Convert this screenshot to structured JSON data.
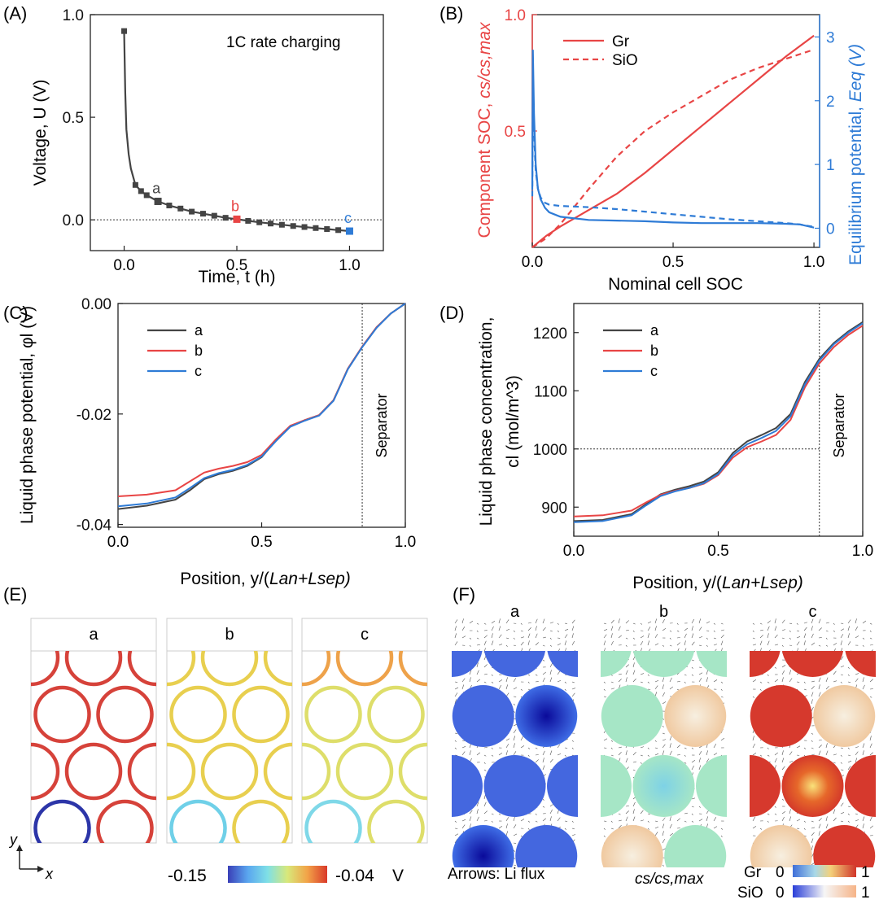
{
  "panel_labels": [
    "(A)",
    "(B)",
    "(C)",
    "(D)",
    "(E)",
    "(F)"
  ],
  "colors": {
    "dark": "#444444",
    "red": "#e84545",
    "blue": "#2e7bd6",
    "axis": "#222222",
    "colorbar_stops": [
      "#3a3fb8",
      "#5aa6ef",
      "#7fe0e6",
      "#d8e87a",
      "#f2a348",
      "#d93a2a"
    ],
    "gr_bar_stops": [
      "#3f6fd9",
      "#a8d8e8",
      "#f3d07a",
      "#d0352a"
    ],
    "sio_bar_stops": [
      "#2a3fd8",
      "#f6f6f6",
      "#f6b488"
    ]
  },
  "chart_data": [
    {
      "id": "A",
      "type": "line",
      "annotation": "1C rate charging",
      "xlabel": "Time, t (h)",
      "ylabel": "Voltage, U (V)",
      "xlim": [
        -0.15,
        1.15
      ],
      "ylim": [
        -0.15,
        1.0
      ],
      "xticks": [
        0.0,
        0.5,
        1.0
      ],
      "xtick_labels": [
        "0.0",
        "0.5",
        "1.0"
      ],
      "yticks": [
        0.0,
        0.5,
        1.0
      ],
      "ytick_labels": [
        "0.0",
        "0.5",
        "1.0"
      ],
      "reference_line_y": 0.0,
      "series": [
        {
          "name": "voltage",
          "x": [
            0.0,
            0.005,
            0.01,
            0.02,
            0.03,
            0.05,
            0.075,
            0.1,
            0.15,
            0.2,
            0.25,
            0.3,
            0.35,
            0.4,
            0.45,
            0.5,
            0.55,
            0.6,
            0.65,
            0.7,
            0.75,
            0.8,
            0.85,
            0.9,
            0.95,
            1.0
          ],
          "y": [
            0.92,
            0.62,
            0.44,
            0.32,
            0.25,
            0.17,
            0.14,
            0.12,
            0.09,
            0.07,
            0.055,
            0.04,
            0.03,
            0.02,
            0.01,
            0.003,
            -0.005,
            -0.012,
            -0.018,
            -0.024,
            -0.03,
            -0.035,
            -0.04,
            -0.045,
            -0.05,
            -0.055
          ]
        }
      ],
      "markers": [
        {
          "label": "a",
          "x": 0.15,
          "y": 0.09,
          "color": "dark"
        },
        {
          "label": "b",
          "x": 0.5,
          "y": 0.003,
          "color": "red"
        },
        {
          "label": "c",
          "x": 1.0,
          "y": -0.055,
          "color": "blue"
        }
      ]
    },
    {
      "id": "B",
      "type": "line",
      "xlabel": "Nominal cell SOC",
      "ylabel_left_plain": "Component SOC, ",
      "ylabel_left_math": "cs/cs,max",
      "ylabel_right_plain": "Equilibrium potential, ",
      "ylabel_right_math": "Eeq (V)",
      "xlim": [
        0.0,
        1.02
      ],
      "ylim_left": [
        0.0,
        1.0
      ],
      "ylim_right": [
        -0.3,
        3.35
      ],
      "xticks": [
        0.0,
        0.5,
        1.0
      ],
      "xtick_labels": [
        "0.0",
        "0.5",
        "1.0"
      ],
      "yticks_left": [
        0.5,
        1.0
      ],
      "ytick_labels_left": [
        "0.5",
        "1.0"
      ],
      "yticks_right": [
        0,
        1,
        2,
        3
      ],
      "ytick_labels_right": [
        "0",
        "1",
        "2",
        "3"
      ],
      "legend": [
        "Gr",
        "SiO"
      ],
      "series": [
        {
          "name": "Gr SOC",
          "axis": "left",
          "style": "solid",
          "color": "red",
          "x": [
            0.0,
            0.05,
            0.1,
            0.2,
            0.3,
            0.4,
            0.5,
            0.6,
            0.7,
            0.8,
            0.9,
            1.0
          ],
          "y": [
            0.0,
            0.05,
            0.09,
            0.16,
            0.23,
            0.32,
            0.42,
            0.52,
            0.62,
            0.72,
            0.82,
            0.91
          ]
        },
        {
          "name": "SiO SOC",
          "axis": "left",
          "style": "dashed",
          "color": "red",
          "x": [
            0.0,
            0.05,
            0.1,
            0.2,
            0.3,
            0.4,
            0.5,
            0.6,
            0.7,
            0.8,
            0.9,
            1.0
          ],
          "y": [
            0.0,
            0.04,
            0.1,
            0.25,
            0.39,
            0.5,
            0.58,
            0.65,
            0.72,
            0.77,
            0.81,
            0.85
          ]
        },
        {
          "name": "Gr Eeq",
          "axis": "right",
          "style": "solid",
          "color": "blue",
          "x": [
            0.0,
            0.002,
            0.006,
            0.012,
            0.02,
            0.03,
            0.045,
            0.06,
            0.1,
            0.2,
            0.3,
            0.4,
            0.5,
            0.6,
            0.7,
            0.8,
            0.9,
            0.95,
            1.0
          ],
          "y": [
            0.6,
            2.8,
            1.8,
            1.0,
            0.62,
            0.45,
            0.32,
            0.25,
            0.18,
            0.13,
            0.12,
            0.11,
            0.09,
            0.08,
            0.08,
            0.08,
            0.07,
            0.06,
            0.01
          ]
        },
        {
          "name": "SiO Eeq",
          "axis": "right",
          "style": "dashed",
          "color": "blue",
          "x": [
            0.0,
            0.002,
            0.006,
            0.012,
            0.02,
            0.03,
            0.045,
            0.06,
            0.1,
            0.2,
            0.3,
            0.4,
            0.5,
            0.6,
            0.7,
            0.8,
            0.9,
            0.95,
            1.0
          ],
          "y": [
            0.5,
            2.2,
            1.5,
            0.9,
            0.62,
            0.48,
            0.4,
            0.37,
            0.35,
            0.33,
            0.3,
            0.26,
            0.22,
            0.18,
            0.14,
            0.11,
            0.08,
            0.06,
            0.02
          ]
        }
      ]
    },
    {
      "id": "C",
      "type": "line",
      "xlabel_plain": "Position, y/(",
      "xlabel_math": "Lan+Lsep)",
      "ylabel": "Liquid phase potential, φl (V)",
      "xlim": [
        0.0,
        1.0
      ],
      "ylim": [
        -0.0405,
        0.0
      ],
      "xticks": [
        0.0,
        0.5,
        1.0
      ],
      "xtick_labels": [
        "0.0",
        "0.5",
        "1.0"
      ],
      "yticks": [
        0.0,
        -0.02,
        -0.04
      ],
      "ytick_labels": [
        "0.00",
        "-0.02",
        "-0.04"
      ],
      "separator_x": 0.85,
      "separator_label": "Separator",
      "legend": [
        "a",
        "b",
        "c"
      ],
      "series": [
        {
          "name": "a",
          "color": "dark",
          "x": [
            0.0,
            0.1,
            0.2,
            0.25,
            0.3,
            0.35,
            0.4,
            0.45,
            0.5,
            0.55,
            0.6,
            0.65,
            0.7,
            0.75,
            0.8,
            0.85,
            0.9,
            0.95,
            1.0
          ],
          "y": [
            -0.0372,
            -0.0366,
            -0.0355,
            -0.0338,
            -0.0318,
            -0.0309,
            -0.0303,
            -0.0294,
            -0.0278,
            -0.0248,
            -0.0222,
            -0.0211,
            -0.0202,
            -0.0175,
            -0.0118,
            -0.0078,
            -0.0043,
            -0.0018,
            0.0
          ]
        },
        {
          "name": "b",
          "color": "red",
          "x": [
            0.0,
            0.1,
            0.2,
            0.25,
            0.3,
            0.35,
            0.4,
            0.45,
            0.5,
            0.55,
            0.6,
            0.65,
            0.7,
            0.75,
            0.8,
            0.85,
            0.9,
            0.95,
            1.0
          ],
          "y": [
            -0.0349,
            -0.0346,
            -0.0338,
            -0.0322,
            -0.0306,
            -0.0299,
            -0.0294,
            -0.0287,
            -0.0274,
            -0.0246,
            -0.0221,
            -0.0211,
            -0.0202,
            -0.0175,
            -0.0118,
            -0.0078,
            -0.0043,
            -0.0018,
            0.0
          ]
        },
        {
          "name": "c",
          "color": "blue",
          "x": [
            0.0,
            0.1,
            0.2,
            0.25,
            0.3,
            0.35,
            0.4,
            0.45,
            0.5,
            0.55,
            0.6,
            0.65,
            0.7,
            0.75,
            0.8,
            0.85,
            0.9,
            0.95,
            1.0
          ],
          "y": [
            -0.0367,
            -0.0362,
            -0.0351,
            -0.0334,
            -0.0316,
            -0.0307,
            -0.0301,
            -0.0292,
            -0.0277,
            -0.0249,
            -0.0223,
            -0.0212,
            -0.0203,
            -0.0176,
            -0.0119,
            -0.0079,
            -0.0044,
            -0.0018,
            0.0
          ]
        }
      ]
    },
    {
      "id": "D",
      "type": "line",
      "xlabel_plain": "Position, y/(",
      "xlabel_math": "Lan+Lsep)",
      "ylabel_line1": "Liquid phase concentration,",
      "ylabel_line2": "cl (mol/m^3)",
      "xlim": [
        0.0,
        1.0
      ],
      "ylim": [
        850,
        1250
      ],
      "xticks": [
        0.0,
        0.5,
        1.0
      ],
      "xtick_labels": [
        "0.0",
        "0.5",
        "1.0"
      ],
      "yticks": [
        900,
        1000,
        1100,
        1200
      ],
      "ytick_labels": [
        "900",
        "1000",
        "1100",
        "1200"
      ],
      "separator_x": 0.85,
      "separator_label": "Separator",
      "reference_line_y": 1000,
      "legend": [
        "a",
        "b",
        "c"
      ],
      "series": [
        {
          "name": "a",
          "color": "dark",
          "x": [
            0.0,
            0.1,
            0.2,
            0.25,
            0.3,
            0.35,
            0.4,
            0.45,
            0.5,
            0.55,
            0.6,
            0.65,
            0.7,
            0.75,
            0.8,
            0.85,
            0.9,
            0.95,
            1.0
          ],
          "y": [
            876,
            878,
            888,
            905,
            922,
            930,
            936,
            944,
            960,
            993,
            1013,
            1024,
            1036,
            1060,
            1115,
            1155,
            1182,
            1202,
            1218
          ]
        },
        {
          "name": "b",
          "color": "red",
          "x": [
            0.0,
            0.1,
            0.2,
            0.25,
            0.3,
            0.35,
            0.4,
            0.45,
            0.5,
            0.55,
            0.6,
            0.65,
            0.7,
            0.75,
            0.8,
            0.85,
            0.9,
            0.95,
            1.0
          ],
          "y": [
            884,
            886,
            894,
            908,
            921,
            928,
            933,
            940,
            955,
            985,
            1003,
            1013,
            1024,
            1050,
            1106,
            1147,
            1175,
            1196,
            1212
          ]
        },
        {
          "name": "c",
          "color": "blue",
          "x": [
            0.0,
            0.1,
            0.2,
            0.25,
            0.3,
            0.35,
            0.4,
            0.45,
            0.5,
            0.55,
            0.6,
            0.65,
            0.7,
            0.75,
            0.8,
            0.85,
            0.9,
            0.95,
            1.0
          ],
          "y": [
            874,
            876,
            886,
            903,
            919,
            927,
            933,
            941,
            957,
            989,
            1008,
            1019,
            1031,
            1056,
            1111,
            1152,
            1180,
            1200,
            1216
          ]
        }
      ]
    }
  ],
  "panel_e": {
    "titles": [
      "a",
      "b",
      "c"
    ],
    "colorbar_min": "-0.15",
    "colorbar_max": "-0.04",
    "colorbar_unit": "V",
    "axis_y": "y",
    "axis_x": "x"
  },
  "panel_f": {
    "titles": [
      "a",
      "b",
      "c"
    ],
    "arrows_note": "Arrows: Li flux",
    "colorbar_title": "cs/cs,max",
    "gr_label": "Gr",
    "sio_label": "SiO",
    "bar_min": "0",
    "bar_max": "1"
  }
}
